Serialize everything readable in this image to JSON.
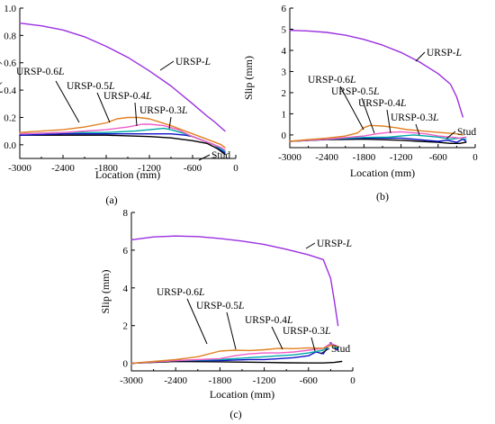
{
  "colors": {
    "URSP-L": "#9b2fe0",
    "URSP-0.6L": "#e08020",
    "URSP-0.5L": "#f05cc8",
    "URSP-0.4L": "#00a8a8",
    "URSP-0.3L": "#1010c8",
    "Stud": "#000000"
  },
  "chart_data": [
    {
      "type": "line",
      "panel_label": "(a)",
      "xlabel": "Location (mm)",
      "ylabel": "Slip (mm)",
      "xlim": [
        -3000,
        0
      ],
      "ylim": [
        -0.1,
        1.0
      ],
      "xticks": [
        "-3000",
        "-2400",
        "-1800",
        "-1200",
        "-600",
        "0"
      ],
      "yticks": [
        "0.0",
        "0.2",
        "0.4",
        "0.6",
        "0.8",
        "1.0"
      ],
      "series": [
        {
          "name": "URSP-L",
          "x": [
            -3000,
            -2700,
            -2400,
            -2100,
            -1800,
            -1500,
            -1200,
            -900,
            -600,
            -400,
            -300,
            -150
          ],
          "y": [
            0.89,
            0.87,
            0.84,
            0.79,
            0.72,
            0.64,
            0.54,
            0.43,
            0.3,
            0.21,
            0.17,
            0.1
          ]
        },
        {
          "name": "URSP-0.6L",
          "x": [
            -3000,
            -2700,
            -2400,
            -2100,
            -1800,
            -1650,
            -1500,
            -1350,
            -1200,
            -900,
            -600,
            -400,
            -200,
            -150
          ],
          "y": [
            0.09,
            0.1,
            0.11,
            0.13,
            0.16,
            0.19,
            0.2,
            0.2,
            0.19,
            0.14,
            0.08,
            0.04,
            0.0,
            -0.02
          ]
        },
        {
          "name": "URSP-0.5L",
          "x": [
            -3000,
            -2400,
            -1800,
            -1500,
            -1300,
            -1200,
            -1000,
            -800,
            -600,
            -400,
            -200,
            -150
          ],
          "y": [
            0.08,
            0.09,
            0.11,
            0.13,
            0.15,
            0.15,
            0.14,
            0.11,
            0.06,
            0.02,
            -0.02,
            -0.04
          ]
        },
        {
          "name": "URSP-0.4L",
          "x": [
            -3000,
            -2400,
            -1800,
            -1400,
            -1200,
            -1000,
            -900,
            -700,
            -500,
            -300,
            -150
          ],
          "y": [
            0.08,
            0.09,
            0.09,
            0.1,
            0.11,
            0.12,
            0.11,
            0.08,
            0.04,
            0.0,
            -0.05
          ]
        },
        {
          "name": "URSP-0.3L",
          "x": [
            -3000,
            -2400,
            -1800,
            -1200,
            -900,
            -700,
            -600,
            -450,
            -300,
            -150
          ],
          "y": [
            0.07,
            0.08,
            0.08,
            0.08,
            0.08,
            0.07,
            0.06,
            0.03,
            0.0,
            -0.06
          ]
        },
        {
          "name": "Stud",
          "x": [
            -3000,
            -2400,
            -1800,
            -1200,
            -900,
            -600,
            -400,
            -250,
            -150
          ],
          "y": [
            0.07,
            0.07,
            0.07,
            0.06,
            0.05,
            0.03,
            0.01,
            -0.03,
            -0.07
          ]
        }
      ]
    },
    {
      "type": "line",
      "panel_label": "(b)",
      "xlabel": "Location (mm)",
      "ylabel": "Slip (mm)",
      "xlim": [
        -3000,
        0
      ],
      "ylim": [
        -0.6,
        6
      ],
      "xticks": [
        "-3000",
        "-2400",
        "-1800",
        "-1200",
        "-600",
        "0"
      ],
      "yticks": [
        "0",
        "1",
        "2",
        "3",
        "4",
        "5",
        "6"
      ],
      "series": [
        {
          "name": "URSP-L",
          "x": [
            -3000,
            -2700,
            -2400,
            -2100,
            -1800,
            -1500,
            -1200,
            -900,
            -600,
            -400,
            -300,
            -200
          ],
          "y": [
            4.95,
            4.92,
            4.85,
            4.72,
            4.52,
            4.25,
            3.9,
            3.45,
            2.9,
            2.4,
            1.8,
            0.85
          ]
        },
        {
          "name": "URSP-0.6L",
          "x": [
            -3000,
            -2700,
            -2400,
            -2100,
            -1900,
            -1800,
            -1700,
            -1500,
            -1300,
            -1100,
            -900,
            -700,
            -500,
            -300,
            -200
          ],
          "y": [
            -0.3,
            -0.22,
            -0.15,
            -0.05,
            0.1,
            0.35,
            0.45,
            0.42,
            0.35,
            0.25,
            0.2,
            0.15,
            0.1,
            0.05,
            0.0
          ]
        },
        {
          "name": "URSP-0.5L",
          "x": [
            -3000,
            -2400,
            -1800,
            -1600,
            -1400,
            -1200,
            -1000,
            -800,
            -600,
            -400,
            -250,
            -150
          ],
          "y": [
            -0.3,
            -0.2,
            -0.05,
            0.05,
            0.12,
            0.15,
            0.1,
            0.05,
            -0.05,
            -0.1,
            -0.15,
            -0.1
          ]
        },
        {
          "name": "URSP-0.4L",
          "x": [
            -3000,
            -2400,
            -1800,
            -1400,
            -1200,
            -1000,
            -800,
            -600,
            -400,
            -250,
            -150
          ],
          "y": [
            -0.3,
            -0.2,
            -0.12,
            -0.1,
            -0.05,
            0.0,
            -0.05,
            -0.1,
            -0.2,
            -0.15,
            -0.2
          ]
        },
        {
          "name": "URSP-0.3L",
          "x": [
            -3000,
            -2400,
            -1800,
            -1200,
            -1000,
            -800,
            -600,
            -450,
            -300,
            -200,
            -150
          ],
          "y": [
            -0.3,
            -0.2,
            -0.15,
            -0.15,
            -0.2,
            -0.25,
            -0.3,
            -0.25,
            -0.35,
            -0.2,
            -0.3
          ]
        },
        {
          "name": "Stud",
          "x": [
            -3000,
            -2400,
            -1800,
            -1200,
            -900,
            -600,
            -400,
            -250,
            -150
          ],
          "y": [
            -0.3,
            -0.22,
            -0.2,
            -0.25,
            -0.3,
            -0.35,
            -0.4,
            -0.4,
            -0.35
          ]
        }
      ]
    },
    {
      "type": "line",
      "panel_label": "(c)",
      "xlabel": "Location (mm)",
      "ylabel": "Slip (mm)",
      "xlim": [
        -3000,
        0
      ],
      "ylim": [
        -0.4,
        8
      ],
      "xticks": [
        "-3000",
        "-2400",
        "-1800",
        "-1200",
        "-600",
        "0"
      ],
      "yticks": [
        "0",
        "2",
        "4",
        "6",
        "8"
      ],
      "series": [
        {
          "name": "URSP-L",
          "x": [
            -3000,
            -2700,
            -2400,
            -2100,
            -1800,
            -1500,
            -1200,
            -900,
            -600,
            -400,
            -300,
            -250,
            -200
          ],
          "y": [
            6.55,
            6.7,
            6.75,
            6.72,
            6.62,
            6.48,
            6.3,
            6.05,
            5.75,
            5.5,
            4.5,
            3.3,
            2.0
          ]
        },
        {
          "name": "URSP-0.6L",
          "x": [
            -3000,
            -2700,
            -2400,
            -2100,
            -1800,
            -1600,
            -1400,
            -1200,
            -1000,
            -800,
            -600,
            -400,
            -300,
            -200
          ],
          "y": [
            0.0,
            0.1,
            0.2,
            0.35,
            0.65,
            0.7,
            0.68,
            0.72,
            0.8,
            0.78,
            0.82,
            0.8,
            0.95,
            0.9
          ]
        },
        {
          "name": "URSP-0.5L",
          "x": [
            -3000,
            -2400,
            -1800,
            -1600,
            -1400,
            -1200,
            -1000,
            -800,
            -600,
            -400,
            -300,
            -200
          ],
          "y": [
            0.0,
            0.15,
            0.25,
            0.4,
            0.5,
            0.55,
            0.55,
            0.6,
            0.7,
            0.8,
            1.05,
            0.9
          ]
        },
        {
          "name": "URSP-0.4L",
          "x": [
            -3000,
            -2400,
            -1800,
            -1600,
            -1400,
            -1200,
            -1000,
            -800,
            -600,
            -400,
            -300,
            -200
          ],
          "y": [
            0.0,
            0.15,
            0.2,
            0.25,
            0.3,
            0.35,
            0.4,
            0.45,
            0.55,
            0.7,
            1.0,
            0.8
          ]
        },
        {
          "name": "URSP-0.3L",
          "x": [
            -3000,
            -2400,
            -1800,
            -1400,
            -1200,
            -1000,
            -800,
            -600,
            -500,
            -400,
            -300,
            -200
          ],
          "y": [
            0.0,
            0.15,
            0.15,
            0.2,
            0.2,
            0.25,
            0.3,
            0.4,
            0.6,
            0.5,
            1.1,
            0.7
          ]
        },
        {
          "name": "Stud",
          "x": [
            -3000,
            -2400,
            -1800,
            -1200,
            -900,
            -600,
            -400,
            -250,
            -150
          ],
          "y": [
            0.0,
            0.1,
            0.08,
            0.05,
            0.03,
            0.02,
            0.02,
            0.05,
            0.1
          ]
        }
      ]
    }
  ],
  "annotations": [
    [
      {
        "pre": "URSP-",
        "post": "L",
        "series": "URSP-L"
      },
      {
        "pre": "URSP-0.6",
        "post": "L",
        "series": "URSP-0.6L"
      },
      {
        "pre": "URSP-0.5",
        "post": "L",
        "series": "URSP-0.5L"
      },
      {
        "pre": "URSP-0.4",
        "post": "L",
        "series": "URSP-0.4L"
      },
      {
        "pre": "URSP-0.3",
        "post": "L",
        "series": "URSP-0.3L"
      },
      {
        "pre": "Stud",
        "post": "",
        "series": "Stud"
      }
    ],
    [
      {
        "pre": "URSP-",
        "post": "L",
        "series": "URSP-L"
      },
      {
        "pre": "URSP-0.6",
        "post": "L",
        "series": "URSP-0.6L"
      },
      {
        "pre": "URSP-0.5",
        "post": "L",
        "series": "URSP-0.5L"
      },
      {
        "pre": "URSP-0.4",
        "post": "L",
        "series": "URSP-0.4L"
      },
      {
        "pre": "URSP-0.3",
        "post": "L",
        "series": "URSP-0.3L"
      },
      {
        "pre": "Stud",
        "post": "",
        "series": "Stud"
      }
    ],
    [
      {
        "pre": "URSP-",
        "post": "L",
        "series": "URSP-L"
      },
      {
        "pre": "URSP-0.6",
        "post": "L",
        "series": "URSP-0.6L"
      },
      {
        "pre": "URSP-0.5",
        "post": "L",
        "series": "URSP-0.5L"
      },
      {
        "pre": "URSP-0.4",
        "post": "L",
        "series": "URSP-0.4L"
      },
      {
        "pre": "URSP-0.3",
        "post": "L",
        "series": "URSP-0.3L"
      },
      {
        "pre": "Stud",
        "post": "",
        "series": "Stud"
      }
    ]
  ]
}
